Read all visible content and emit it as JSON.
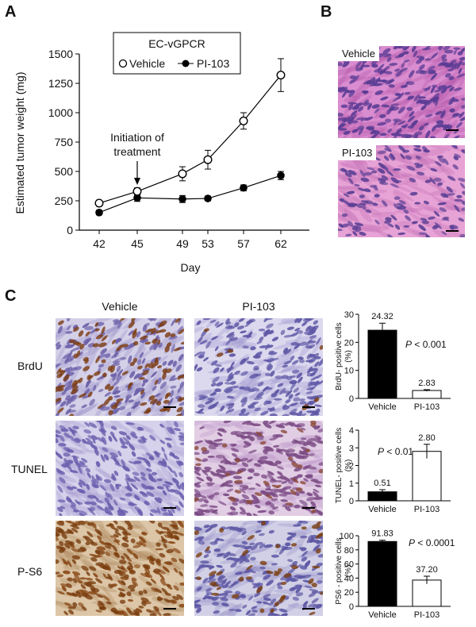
{
  "panels": {
    "a": "A",
    "b": "B",
    "c": "C"
  },
  "colors": {
    "he_stain": "#cc6fb7",
    "hematoxylin": "#6a4ea0",
    "dab": "#8a4a1c",
    "bar_vehicle": "#000000",
    "bar_pi": "#ffffff"
  },
  "chart_data": [
    {
      "type": "line",
      "title": "",
      "legend_title": "EC-vGPCR",
      "legend_position": "top-center",
      "xlabel": "Day",
      "ylabel": "Estimated tumor weight (mg)",
      "x": [
        "42",
        "45",
        "49",
        "53",
        "57",
        "62"
      ],
      "ylim": [
        0,
        1500
      ],
      "yticks": [
        "0",
        "250",
        "500",
        "750",
        "1000",
        "1250",
        "1500"
      ],
      "series": [
        {
          "name": "Vehicle",
          "marker": "open-circle",
          "values": [
            230,
            330,
            480,
            600,
            930,
            1320
          ],
          "errors": [
            25,
            30,
            60,
            80,
            70,
            140
          ]
        },
        {
          "name": "PI-103",
          "marker": "filled-circle",
          "values": [
            150,
            275,
            265,
            270,
            360,
            465
          ],
          "errors": [
            20,
            30,
            30,
            20,
            25,
            35
          ]
        }
      ],
      "annotation": {
        "text_line1": "Initiation of",
        "text_line2": "treatment",
        "at_x": "45"
      }
    },
    {
      "type": "bar",
      "ylabel_line1": "BrdU- positive cells",
      "ylabel_line2": "(%)",
      "categories": [
        "Vehicle",
        "PI-103"
      ],
      "values": [
        24.32,
        2.83
      ],
      "errors": [
        2.5,
        0.3
      ],
      "value_labels": [
        "24.32",
        "2.83"
      ],
      "ylim": [
        0,
        30
      ],
      "yticks": [
        "0",
        "10",
        "20",
        "30"
      ],
      "p_value": "< 0.001"
    },
    {
      "type": "bar",
      "ylabel_line1": "TUNEL- positive cells",
      "ylabel_line2": "(%)",
      "categories": [
        "Vehicle",
        "PI-103"
      ],
      "values": [
        0.51,
        2.8
      ],
      "errors": [
        0.12,
        0.4
      ],
      "value_labels": [
        "0.51",
        "2.80"
      ],
      "ylim": [
        0,
        4
      ],
      "yticks": [
        "0",
        "1",
        "2",
        "3",
        "4"
      ],
      "p_value": "< 0.01"
    },
    {
      "type": "bar",
      "ylabel_line1": "PS6 - positive cells",
      "ylabel_line2": "(%)",
      "categories": [
        "Vehicle",
        "PI-103"
      ],
      "values": [
        91.83,
        37.2
      ],
      "errors": [
        1.8,
        5.5
      ],
      "value_labels": [
        "91.83",
        "37.20"
      ],
      "ylim": [
        0,
        100
      ],
      "yticks": [
        "0",
        "20",
        "40",
        "60",
        "80",
        "100"
      ],
      "p_value": "< 0.0001"
    }
  ],
  "panel_b": {
    "labels": [
      "Vehicle",
      "PI-103"
    ]
  },
  "panel_c": {
    "columns": [
      "Vehicle",
      "PI-103"
    ],
    "rows": [
      "BrdU",
      "TUNEL",
      "P-S6"
    ]
  },
  "p_symbol": "P"
}
